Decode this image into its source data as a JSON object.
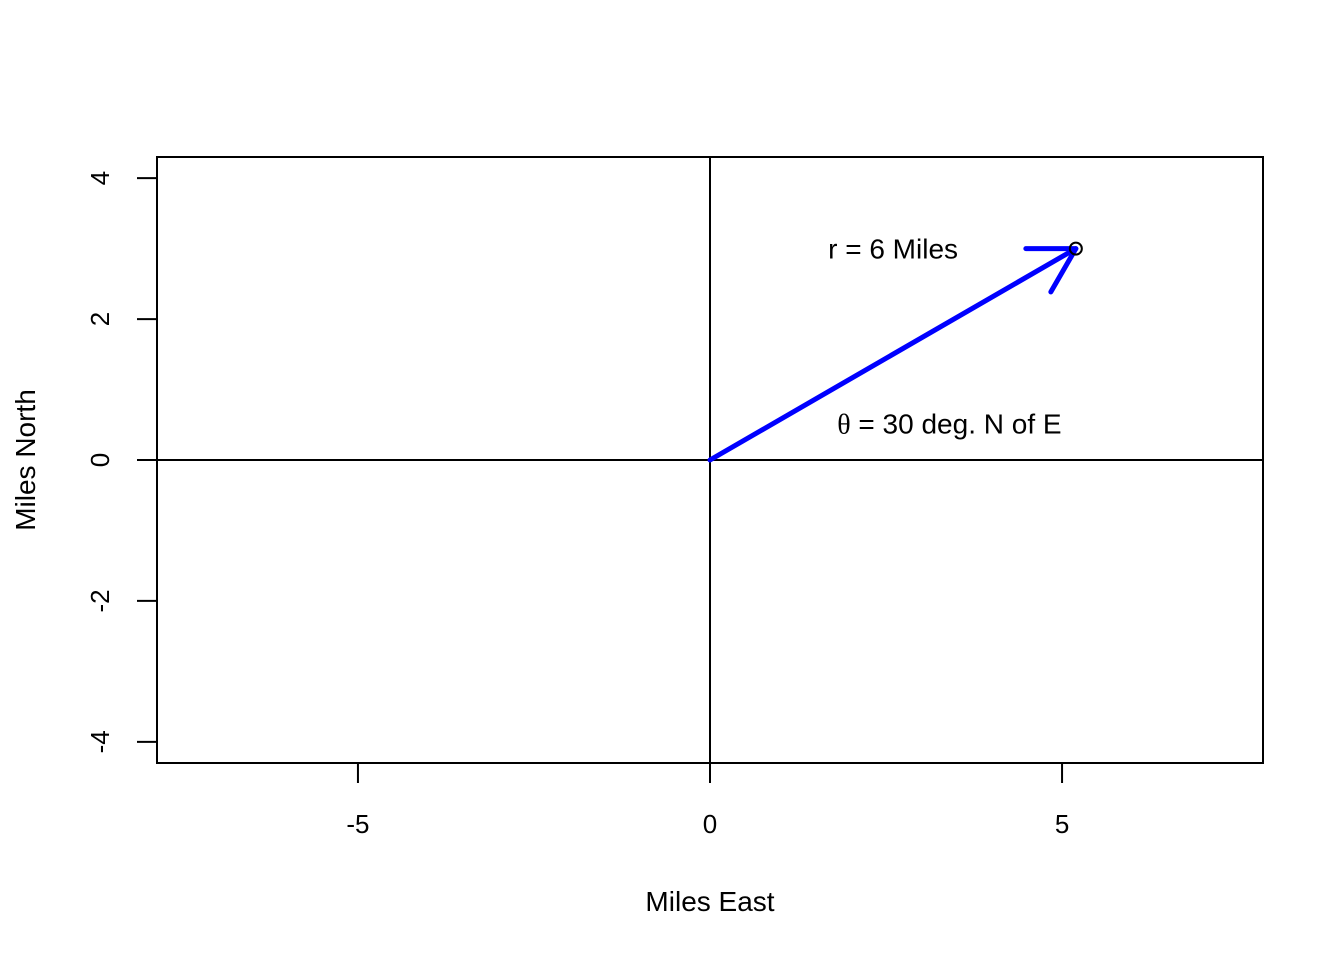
{
  "chart_data": {
    "type": "scatter",
    "title": "",
    "xlabel": "Miles East",
    "ylabel": "Miles North",
    "xlim": [
      -7.854,
      7.854
    ],
    "ylim": [
      -4.3,
      4.3
    ],
    "x_ticks": [
      -5,
      0,
      5
    ],
    "x_tick_labels": [
      "-5",
      "0",
      "5"
    ],
    "y_ticks": [
      -4,
      -2,
      0,
      2,
      4
    ],
    "y_tick_labels": [
      "-4",
      "-2",
      "0",
      "2",
      "4"
    ],
    "grid": false,
    "reference_lines": {
      "horizontal": 0,
      "vertical": 0
    },
    "points": [
      {
        "x": 5.196,
        "y": 3.0,
        "marker": "open-circle"
      }
    ],
    "arrow": {
      "from": [
        0,
        0
      ],
      "to": [
        5.196,
        3.0
      ],
      "color": "#0000ff"
    },
    "annotations": [
      {
        "x": 2.6,
        "y": 3.0,
        "text": "r = 6 Miles"
      },
      {
        "x": 3.4,
        "y": 0.52,
        "symbol": "θ",
        "text": " = 30 deg. N of E"
      }
    ]
  }
}
